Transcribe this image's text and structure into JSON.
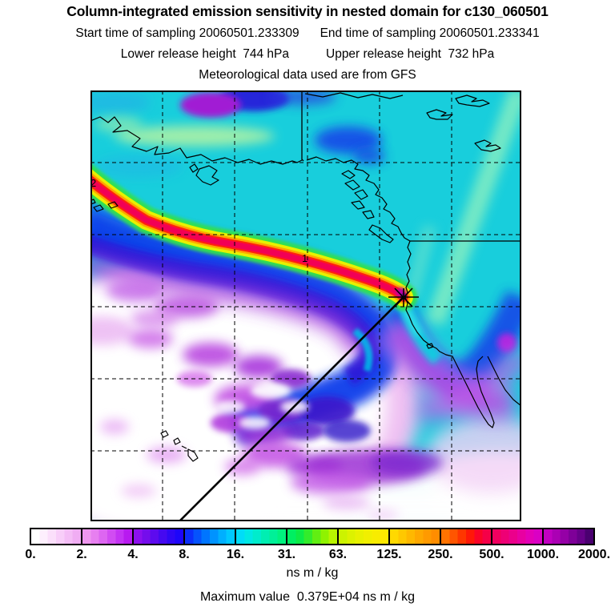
{
  "header": {
    "title": "Column-integrated emission sensitivity in nested domain for c130_060501",
    "start_time": "Start time of sampling 20060501.233309",
    "end_time": "End time of sampling 20060501.233341",
    "lower_release": "Lower release height  744 hPa",
    "upper_release": "Upper release height  732 hPa",
    "met_source": "Meteorological data used are from GFS"
  },
  "map": {
    "trajectory_labels": [
      {
        "text": "2"
      },
      {
        "text": "1"
      }
    ],
    "receptor_marker": "star",
    "overlays": [
      "coastlines",
      "dashed lat-lon gridlines",
      "political border segments",
      "straight trajectory line from receptor to lower left"
    ]
  },
  "colorbar": {
    "ticks": [
      "0.",
      "2.",
      "4.",
      "8.",
      "16.",
      "31.",
      "63.",
      "125.",
      "250.",
      "500.",
      "1000.",
      "2000."
    ],
    "units": "ns m / kg",
    "segments": [
      {
        "from": 0,
        "to": 2,
        "colors": [
          "#ffffff",
          "#fdeffd",
          "#fbdffb",
          "#f8cef9",
          "#f4bdf6",
          "#f0adf3"
        ]
      },
      {
        "from": 2,
        "to": 4,
        "colors": [
          "#ef97ef",
          "#e77ff0",
          "#dd66f1",
          "#d14cf2",
          "#c433f3",
          "#b81af0"
        ]
      },
      {
        "from": 4,
        "to": 8,
        "colors": [
          "#8d10ee",
          "#750dec",
          "#5d0bee",
          "#4509f0",
          "#2f07f4",
          "#1d06fa"
        ]
      },
      {
        "from": 8,
        "to": 16,
        "colors": [
          "#0b2ffb",
          "#0553fd",
          "#0075ff",
          "#0093ff",
          "#00afff",
          "#00c8ff"
        ]
      },
      {
        "from": 16,
        "to": 31,
        "colors": [
          "#00dcf8",
          "#00e8e4",
          "#00eccc",
          "#00eeb2",
          "#00f098",
          "#00f27e"
        ]
      },
      {
        "from": 31,
        "to": 63,
        "colors": [
          "#00ef62",
          "#0deb46",
          "#33ec2b",
          "#61ee12",
          "#8ff201",
          "#b8f400"
        ]
      },
      {
        "from": 63,
        "to": 125,
        "colors": [
          "#ccf300",
          "#dcf200",
          "#e8f100",
          "#f1ef00",
          "#f8ec00",
          "#fde800"
        ]
      },
      {
        "from": 125,
        "to": 250,
        "colors": [
          "#ffd900",
          "#ffc800",
          "#ffb800",
          "#ffa800",
          "#ff9a00",
          "#ff8d00"
        ]
      },
      {
        "from": 250,
        "to": 500,
        "colors": [
          "#ff7300",
          "#ff5500",
          "#ff3600",
          "#ff1808",
          "#fb0428",
          "#f50048"
        ]
      },
      {
        "from": 500,
        "to": 1000,
        "colors": [
          "#f1005f",
          "#ee0075",
          "#eb008b",
          "#e800a1",
          "#e300b7",
          "#da00c4"
        ]
      },
      {
        "from": 1000,
        "to": 2000,
        "colors": [
          "#c100c1",
          "#ab00b4",
          "#9500a6",
          "#7e0098",
          "#670089",
          "#4a0070"
        ]
      }
    ]
  },
  "footer": {
    "max_value": "Maximum value  0.379E+04 ns m / kg"
  },
  "chart_data": {
    "type": "heatmap",
    "title": "Column-integrated emission sensitivity in nested domain for c130_060501",
    "subtitle_lines": [
      "Start time of sampling 20060501.233309    End time of sampling 20060501.233341",
      "Lower release height  744 hPa      Upper release height  732 hPa",
      "Meteorological data used are from GFS"
    ],
    "value_units": "ns m / kg",
    "colorbar_ticks": [
      0,
      2,
      4,
      8,
      16,
      31,
      63,
      125,
      250,
      500,
      1000,
      2000
    ],
    "scale": "logarithmic, roughly factor-2 steps",
    "maximum_value_text": "0.379E+04 ns m / kg",
    "legend_position": "horizontal colorbar below map",
    "grid": "dashed graticule, 6x6 cells",
    "annotations": [
      "high-sensitivity plume (red/yellow/green band) curving from left edge to receptor near the California coast",
      "receptor marked with black star just off the coast",
      "straight black line from receptor toward lower-left corner",
      "plume age labels 2 (left edge) and 1 (mid plume)",
      "low-sensitivity white/purple mottled region over the subtropical Pacific",
      "coastlines of Alaska, British Columbia, US West Coast, Baja California, Hawaii"
    ]
  }
}
